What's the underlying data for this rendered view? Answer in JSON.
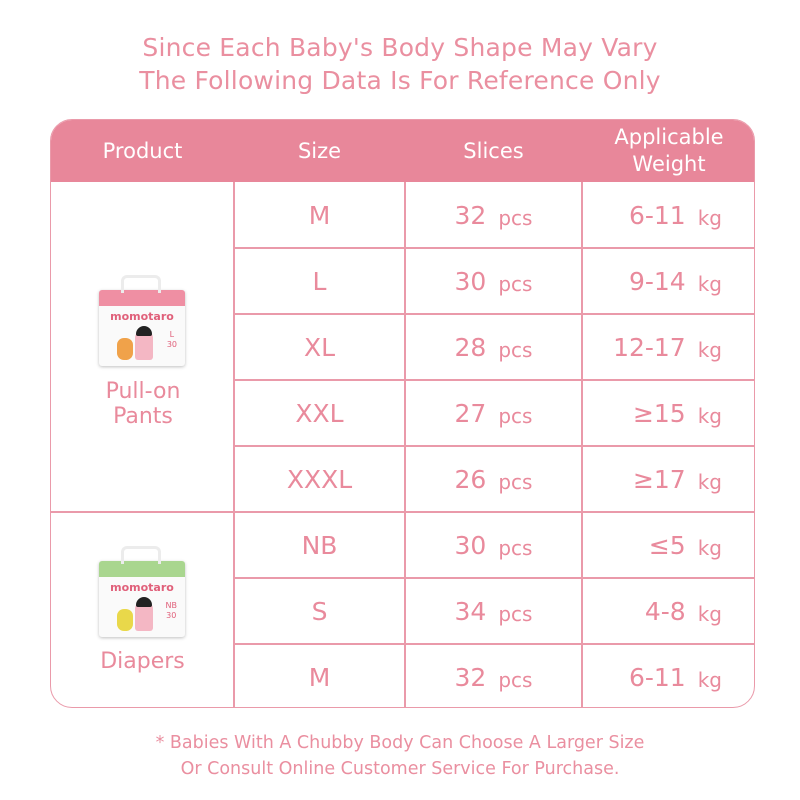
{
  "title": {
    "line1": "Since Each Baby's Body Shape May Vary",
    "line2": "The Following Data Is For Reference Only"
  },
  "colors": {
    "header_bg": "#e8879a",
    "text": "#e98a9c",
    "border": "#ea9aaa"
  },
  "table": {
    "headers": [
      "Product",
      "Size",
      "Slices",
      "Applicable Weight"
    ],
    "groups": [
      {
        "product": "Pull-on Pants",
        "package": {
          "brand_logo": "momotaro",
          "band_color": "#ef8fa3",
          "size_label": "L",
          "count_label": "30"
        },
        "rows": [
          {
            "size": "M",
            "slices": "32",
            "slices_unit": "pcs",
            "weight": "6-11",
            "weight_unit": "kg"
          },
          {
            "size": "L",
            "slices": "30",
            "slices_unit": "pcs",
            "weight": "9-14",
            "weight_unit": "kg"
          },
          {
            "size": "XL",
            "slices": "28",
            "slices_unit": "pcs",
            "weight": "12-17",
            "weight_unit": "kg"
          },
          {
            "size": "XXL",
            "slices": "27",
            "slices_unit": "pcs",
            "weight": "≥15",
            "weight_unit": "kg"
          },
          {
            "size": "XXXL",
            "slices": "26",
            "slices_unit": "pcs",
            "weight": "≥17",
            "weight_unit": "kg"
          }
        ]
      },
      {
        "product": "Diapers",
        "package": {
          "brand_logo": "momotaro",
          "band_color": "#a9d68f",
          "size_label": "NB",
          "count_label": "30"
        },
        "rows": [
          {
            "size": "NB",
            "slices": "30",
            "slices_unit": "pcs",
            "weight": "≤5",
            "weight_unit": "kg"
          },
          {
            "size": "S",
            "slices": "34",
            "slices_unit": "pcs",
            "weight": "4-8",
            "weight_unit": "kg"
          },
          {
            "size": "M",
            "slices": "32",
            "slices_unit": "pcs",
            "weight": "6-11",
            "weight_unit": "kg"
          }
        ]
      }
    ]
  },
  "footnote": {
    "line1": "* Babies With A Chubby Body Can Choose A Larger Size",
    "line2": "Or Consult Online Customer Service For Purchase."
  }
}
